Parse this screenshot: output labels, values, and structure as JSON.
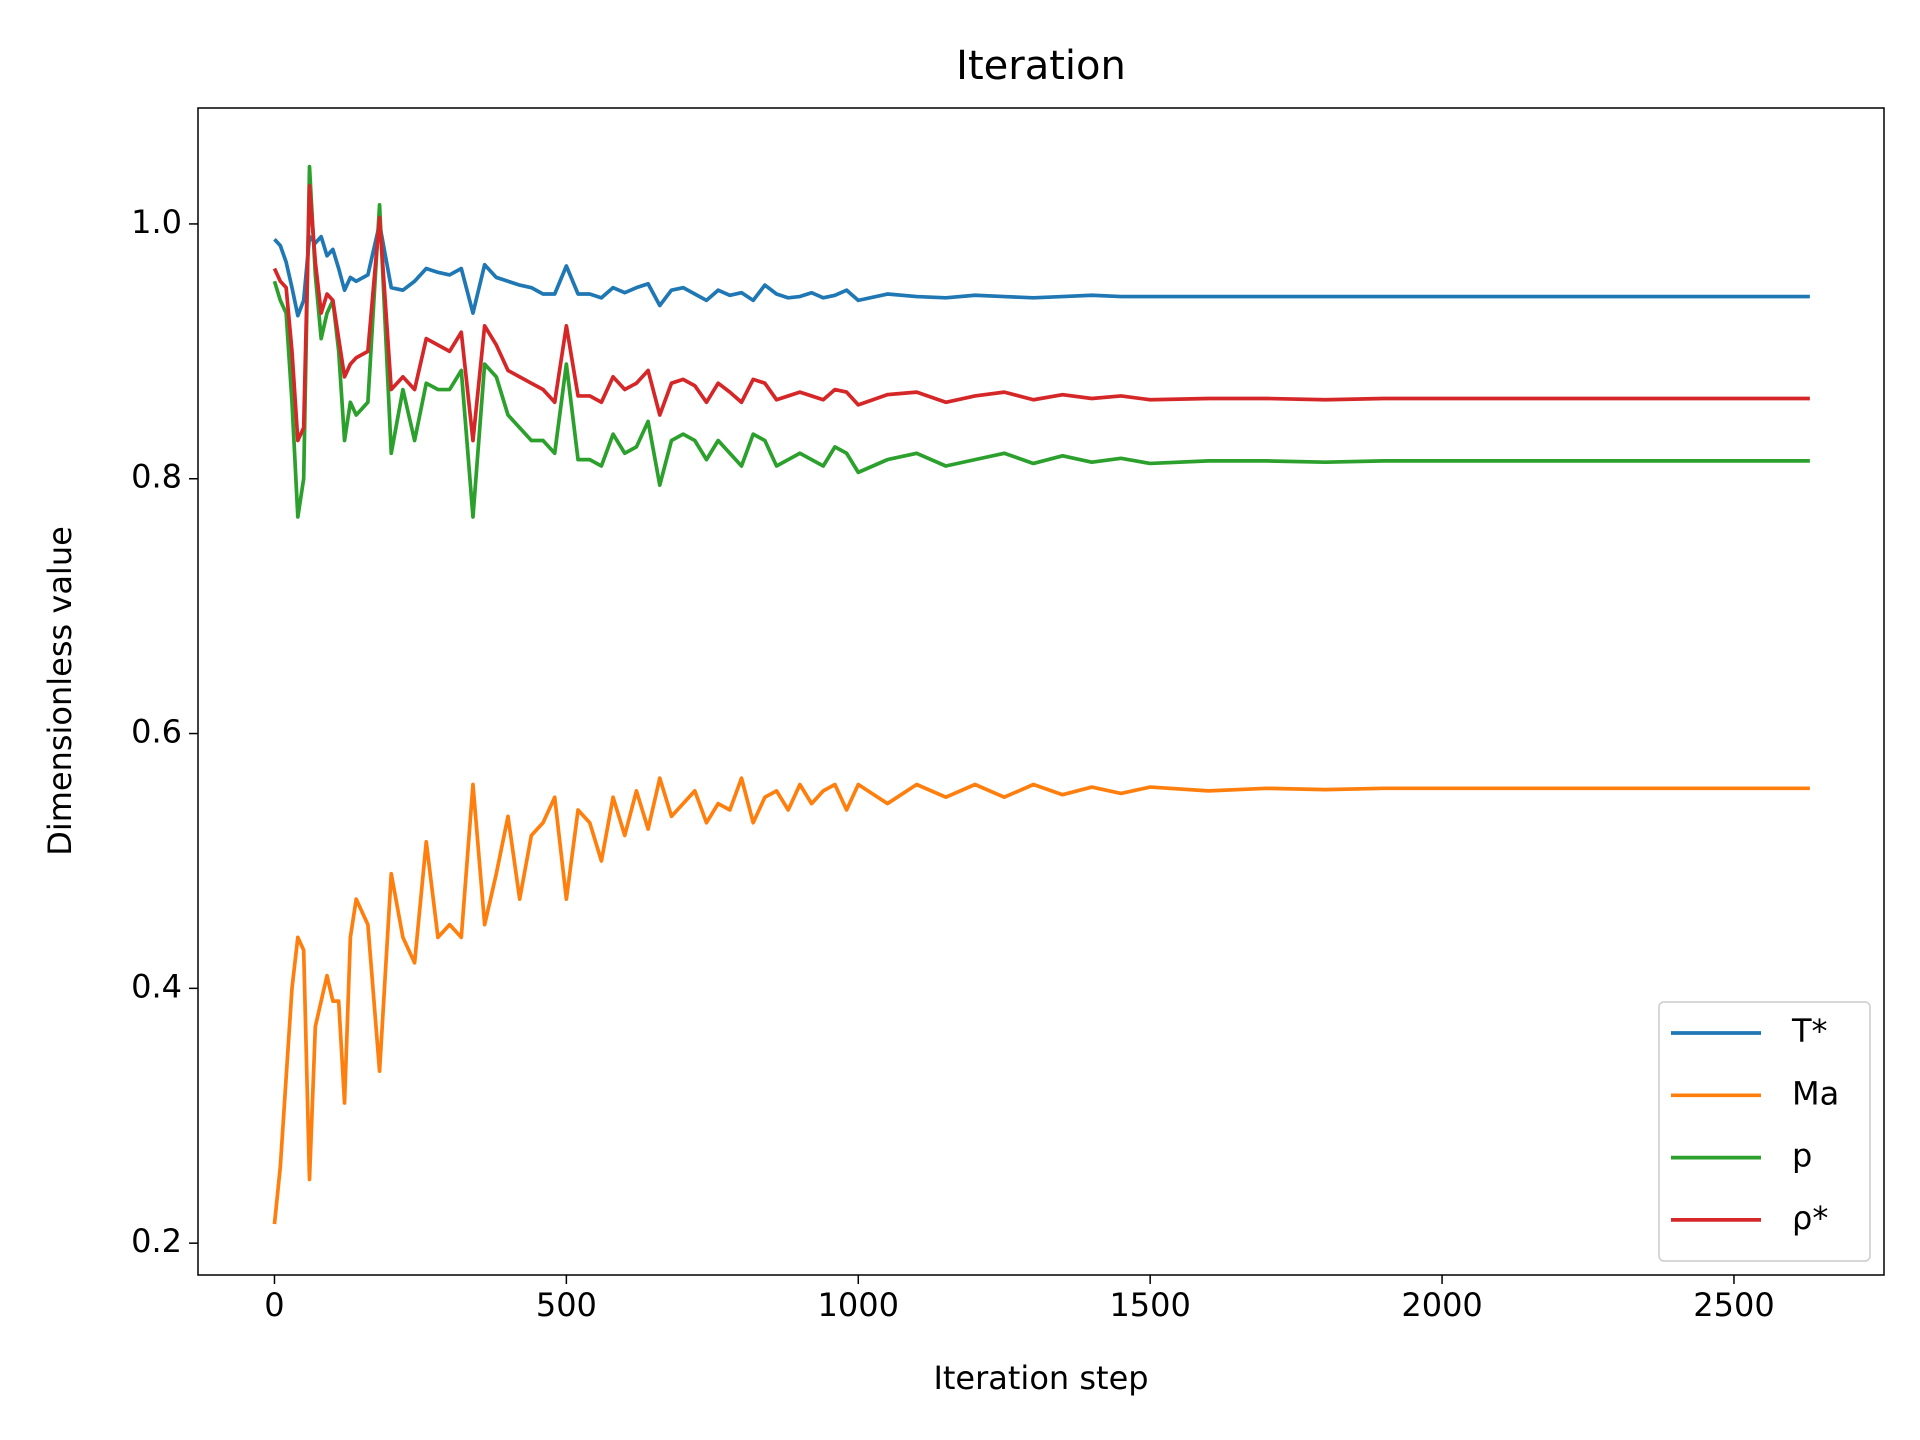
{
  "chart_data": {
    "type": "line",
    "title": "Iteration",
    "x_label": "Iteration step",
    "y_label": "Dimensionless value",
    "x": [
      0,
      10,
      20,
      30,
      40,
      50,
      60,
      70,
      80,
      90,
      100,
      110,
      120,
      130,
      140,
      160,
      180,
      200,
      220,
      240,
      260,
      280,
      300,
      320,
      340,
      360,
      380,
      400,
      420,
      440,
      460,
      480,
      500,
      520,
      540,
      560,
      580,
      600,
      620,
      640,
      660,
      680,
      700,
      720,
      740,
      760,
      780,
      800,
      820,
      840,
      860,
      880,
      900,
      920,
      940,
      960,
      980,
      1000,
      1050,
      1100,
      1150,
      1200,
      1250,
      1300,
      1350,
      1400,
      1450,
      1500,
      1600,
      1700,
      1800,
      1900,
      2000,
      2200,
      2400,
      2630
    ],
    "series": [
      {
        "name": "T*",
        "color": "#1f77b4",
        "values": [
          0.988,
          0.983,
          0.97,
          0.95,
          0.928,
          0.94,
          0.99,
          0.985,
          0.99,
          0.975,
          0.98,
          0.965,
          0.948,
          0.958,
          0.955,
          0.96,
          1.0,
          0.95,
          0.948,
          0.955,
          0.965,
          0.962,
          0.96,
          0.965,
          0.93,
          0.968,
          0.958,
          0.955,
          0.952,
          0.95,
          0.945,
          0.945,
          0.967,
          0.945,
          0.945,
          0.942,
          0.95,
          0.946,
          0.95,
          0.953,
          0.936,
          0.948,
          0.95,
          0.945,
          0.94,
          0.948,
          0.944,
          0.946,
          0.94,
          0.952,
          0.945,
          0.942,
          0.943,
          0.946,
          0.942,
          0.944,
          0.948,
          0.94,
          0.945,
          0.943,
          0.942,
          0.944,
          0.943,
          0.942,
          0.943,
          0.944,
          0.943,
          0.943,
          0.943,
          0.943,
          0.943,
          0.943,
          0.943,
          0.943,
          0.943,
          0.943
        ]
      },
      {
        "name": "Ma",
        "color": "#ff7f0e",
        "values": [
          0.215,
          0.26,
          0.33,
          0.4,
          0.44,
          0.43,
          0.25,
          0.37,
          0.39,
          0.41,
          0.39,
          0.39,
          0.31,
          0.44,
          0.47,
          0.45,
          0.335,
          0.49,
          0.44,
          0.42,
          0.515,
          0.44,
          0.45,
          0.44,
          0.56,
          0.45,
          0.49,
          0.535,
          0.47,
          0.52,
          0.53,
          0.55,
          0.47,
          0.54,
          0.53,
          0.5,
          0.55,
          0.52,
          0.555,
          0.525,
          0.565,
          0.535,
          0.545,
          0.555,
          0.53,
          0.545,
          0.54,
          0.565,
          0.53,
          0.55,
          0.555,
          0.54,
          0.56,
          0.545,
          0.555,
          0.56,
          0.54,
          0.56,
          0.545,
          0.56,
          0.55,
          0.56,
          0.55,
          0.56,
          0.552,
          0.558,
          0.553,
          0.558,
          0.555,
          0.557,
          0.556,
          0.557,
          0.557,
          0.557,
          0.557,
          0.557
        ]
      },
      {
        "name": "p",
        "color": "#2ca02c",
        "values": [
          0.955,
          0.94,
          0.93,
          0.86,
          0.77,
          0.8,
          1.045,
          0.96,
          0.91,
          0.93,
          0.94,
          0.9,
          0.83,
          0.86,
          0.85,
          0.86,
          1.015,
          0.82,
          0.87,
          0.83,
          0.875,
          0.87,
          0.87,
          0.885,
          0.77,
          0.89,
          0.88,
          0.85,
          0.84,
          0.83,
          0.83,
          0.82,
          0.89,
          0.815,
          0.815,
          0.81,
          0.835,
          0.82,
          0.825,
          0.845,
          0.795,
          0.83,
          0.835,
          0.83,
          0.815,
          0.83,
          0.82,
          0.81,
          0.835,
          0.83,
          0.81,
          0.815,
          0.82,
          0.815,
          0.81,
          0.825,
          0.82,
          0.805,
          0.815,
          0.82,
          0.81,
          0.815,
          0.82,
          0.812,
          0.818,
          0.813,
          0.816,
          0.812,
          0.814,
          0.814,
          0.813,
          0.814,
          0.814,
          0.814,
          0.814,
          0.814
        ]
      },
      {
        "name": "ρ*",
        "color": "#d62728",
        "values": [
          0.965,
          0.955,
          0.95,
          0.9,
          0.83,
          0.84,
          1.03,
          0.97,
          0.93,
          0.945,
          0.94,
          0.91,
          0.88,
          0.89,
          0.895,
          0.9,
          1.005,
          0.87,
          0.88,
          0.87,
          0.91,
          0.905,
          0.9,
          0.915,
          0.83,
          0.92,
          0.905,
          0.885,
          0.88,
          0.875,
          0.87,
          0.86,
          0.92,
          0.865,
          0.865,
          0.86,
          0.88,
          0.87,
          0.875,
          0.885,
          0.85,
          0.875,
          0.878,
          0.873,
          0.86,
          0.875,
          0.868,
          0.86,
          0.878,
          0.875,
          0.862,
          0.865,
          0.868,
          0.865,
          0.862,
          0.87,
          0.868,
          0.858,
          0.866,
          0.868,
          0.86,
          0.865,
          0.868,
          0.862,
          0.866,
          0.863,
          0.865,
          0.862,
          0.863,
          0.863,
          0.862,
          0.863,
          0.863,
          0.863,
          0.863,
          0.863
        ]
      }
    ],
    "xlim": [
      -131,
      2757
    ],
    "ylim": [
      0.175,
      1.091
    ],
    "xticks": [
      0,
      500,
      1000,
      1500,
      2000,
      2500
    ],
    "yticks": [
      0.2,
      0.4,
      0.6,
      0.8,
      {
        "value": 1,
        "label": "1.0"
      }
    ],
    "grid": false,
    "legend": "lower right"
  }
}
